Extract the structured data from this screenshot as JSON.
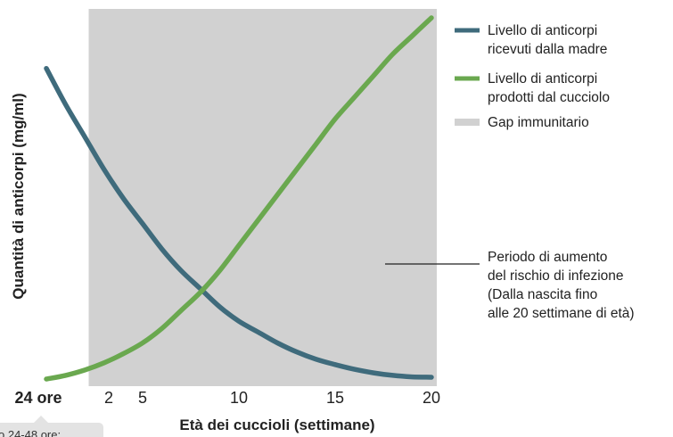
{
  "chart_data": {
    "type": "line",
    "xlabel": "Età dei cuccioli (settimane)",
    "ylabel": "Quantità di anticorpi (mg/ml)",
    "x_ticks": [
      {
        "label": "24 ore",
        "x": 0,
        "bold": true
      },
      {
        "label": "2",
        "x": 2,
        "bold": false
      },
      {
        "label": "5",
        "x": 5,
        "bold": false
      },
      {
        "label": "10",
        "x": 10,
        "bold": false
      },
      {
        "label": "15",
        "x": 15,
        "bold": false
      },
      {
        "label": "20",
        "x": 20,
        "bold": false
      }
    ],
    "xlim": [
      0,
      20
    ],
    "ylim": [
      0,
      1
    ],
    "shaded_region": {
      "label": "Gap immunitario",
      "x_start": 2.2,
      "x_end": 20.8,
      "color": "#d1d1d1"
    },
    "series": [
      {
        "name": "Livello di anticorpi ricevuti dalla madre",
        "name_lines": [
          "Livello di anticorpi",
          "ricevuti dalla madre"
        ],
        "color": "#3f6b7c",
        "x": [
          0,
          1,
          2,
          3,
          4,
          5,
          6,
          7,
          8,
          9,
          10,
          11,
          12,
          13,
          14,
          15,
          16,
          17,
          18,
          19,
          20
        ],
        "y": [
          0.86,
          0.76,
          0.67,
          0.58,
          0.5,
          0.43,
          0.36,
          0.3,
          0.25,
          0.2,
          0.16,
          0.13,
          0.1,
          0.075,
          0.055,
          0.04,
          0.027,
          0.017,
          0.01,
          0.006,
          0.005
        ]
      },
      {
        "name": "Livello di anticorpi prodotti dal cucciolo",
        "name_lines": [
          "Livello di anticorpi",
          "prodotti dal cucciolo"
        ],
        "color": "#6aa84f",
        "x": [
          0,
          1,
          2,
          3,
          4,
          5,
          6,
          7,
          8,
          9,
          10,
          11,
          12,
          13,
          14,
          15,
          16,
          17,
          18,
          19,
          20
        ],
        "y": [
          0.0,
          0.01,
          0.025,
          0.045,
          0.07,
          0.1,
          0.14,
          0.19,
          0.24,
          0.3,
          0.37,
          0.44,
          0.51,
          0.58,
          0.65,
          0.72,
          0.78,
          0.84,
          0.9,
          0.95,
          1.0
        ]
      }
    ],
    "legend": {
      "position": "top-right",
      "gap_label": "Gap immunitario"
    },
    "annotation": {
      "lines": [
        "Periodo di aumento",
        "del rischio di infezione",
        "(Dalla nascita fino",
        "alle 20 settimane di età)"
      ]
    },
    "callout": {
      "text": "o 24-48 ore:"
    }
  }
}
